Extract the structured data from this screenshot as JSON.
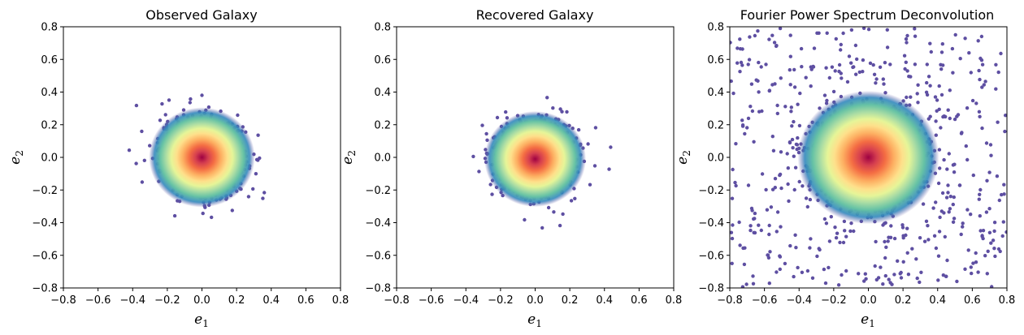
{
  "chart_data": [
    {
      "type": "scatter",
      "title": "Observed Galaxy",
      "xlabel": "e",
      "xlabel_sub": "1",
      "ylabel": "e",
      "ylabel_sub": "2",
      "xlim": [
        -0.8,
        0.8
      ],
      "ylim": [
        -0.8,
        0.8
      ],
      "xticks": [
        -0.8,
        -0.6,
        -0.4,
        -0.2,
        0.0,
        0.2,
        0.4,
        0.6,
        0.8
      ],
      "yticks": [
        -0.8,
        -0.6,
        -0.4,
        -0.2,
        0.0,
        0.2,
        0.4,
        0.6,
        0.8
      ],
      "colormap": "Spectral_r (density)",
      "distribution": {
        "center": [
          0.0,
          0.0
        ],
        "sigma": 0.12,
        "extent": 0.68
      },
      "grid": false
    },
    {
      "type": "scatter",
      "title": "Recovered Galaxy",
      "xlabel": "e",
      "xlabel_sub": "1",
      "ylabel": "e",
      "ylabel_sub": "2",
      "xlim": [
        -0.8,
        0.8
      ],
      "ylim": [
        -0.8,
        0.8
      ],
      "xticks": [
        -0.8,
        -0.6,
        -0.4,
        -0.2,
        0.0,
        0.2,
        0.4,
        0.6,
        0.8
      ],
      "yticks": [
        -0.8,
        -0.6,
        -0.4,
        -0.2,
        0.0,
        0.2,
        0.4,
        0.6,
        0.8
      ],
      "colormap": "Spectral_r (density)",
      "distribution": {
        "center": [
          0.0,
          -0.01
        ],
        "sigma": 0.115,
        "extent": 0.56
      },
      "grid": false
    },
    {
      "type": "scatter",
      "title": "Fourier Power Spectrum Deconvolution",
      "xlabel": "e",
      "xlabel_sub": "1",
      "ylabel": "e",
      "ylabel_sub": "2",
      "xlim": [
        -0.8,
        0.8
      ],
      "ylim": [
        -0.8,
        0.8
      ],
      "xticks": [
        -0.8,
        -0.6,
        -0.4,
        -0.2,
        0.0,
        0.2,
        0.4,
        0.6,
        0.8
      ],
      "yticks": [
        -0.8,
        -0.6,
        -0.4,
        -0.2,
        0.0,
        0.2,
        0.4,
        0.6,
        0.8
      ],
      "colormap": "Spectral_r (density)",
      "distribution": {
        "center": [
          0.0,
          0.0
        ],
        "sigma": 0.16,
        "extent": 0.8,
        "background_scatter": true
      },
      "grid": false
    }
  ],
  "colors": {
    "outer_point": "#5e4fa2",
    "spectral_r": [
      "#5e4fa2",
      "#3288bd",
      "#66c2a5",
      "#abdda4",
      "#e6f598",
      "#fee08b",
      "#fdae61",
      "#f46d43",
      "#d53e4f",
      "#9e0142"
    ]
  }
}
